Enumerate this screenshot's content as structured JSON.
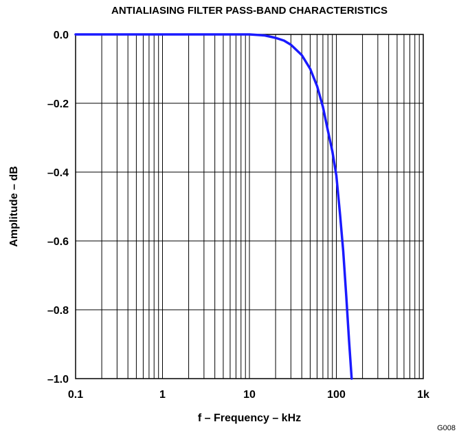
{
  "chart_data": {
    "type": "line",
    "title": "ANTIALIASING FILTER PASS-BAND CHARACTERISTICS",
    "xlabel": "f – Frequency – kHz",
    "ylabel": "Amplitude – dB",
    "x_scale": "log",
    "xlim": [
      0.1,
      1000
    ],
    "ylim": [
      -1.0,
      0.0
    ],
    "x_tick_labels": [
      {
        "value": 0.1,
        "label": "0.1"
      },
      {
        "value": 1,
        "label": "1"
      },
      {
        "value": 10,
        "label": "10"
      },
      {
        "value": 100,
        "label": "100"
      },
      {
        "value": 1000,
        "label": "1k"
      }
    ],
    "y_tick_labels": [
      {
        "value": 0.0,
        "label": "0.0"
      },
      {
        "value": -0.2,
        "label": "–0.2"
      },
      {
        "value": -0.4,
        "label": "–0.4"
      },
      {
        "value": -0.6,
        "label": "–0.6"
      },
      {
        "value": -0.8,
        "label": "–0.8"
      },
      {
        "value": -1.0,
        "label": "–1.0"
      }
    ],
    "grid": true,
    "series": [
      {
        "color": "#1a1aff",
        "x": [
          0.1,
          1,
          5,
          10,
          15,
          20,
          25,
          30,
          40,
          50,
          60,
          70,
          80,
          90,
          100,
          110,
          120,
          130,
          140,
          150
        ],
        "y": [
          0.0,
          0.0,
          0.0,
          0.0,
          -0.003,
          -0.01,
          -0.018,
          -0.03,
          -0.06,
          -0.1,
          -0.15,
          -0.21,
          -0.28,
          -0.34,
          -0.41,
          -0.52,
          -0.63,
          -0.76,
          -0.89,
          -1.0
        ]
      }
    ],
    "figure_code": "G008"
  }
}
